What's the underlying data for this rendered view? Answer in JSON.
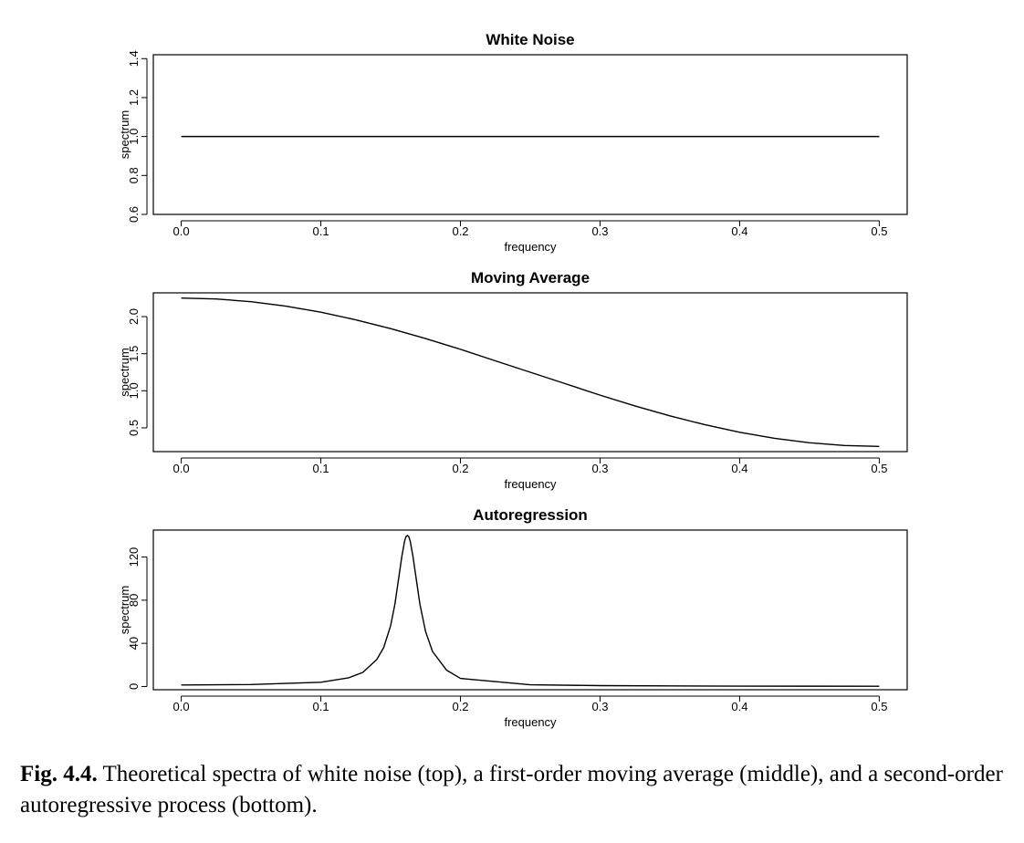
{
  "chart_data": [
    {
      "type": "line",
      "title": "White Noise",
      "xlabel": "frequency",
      "ylabel": "spectrum",
      "xlim": [
        -0.02,
        0.52
      ],
      "ylim": [
        0.6,
        1.42
      ],
      "xticks": [
        0.0,
        0.1,
        0.2,
        0.3,
        0.4,
        0.5
      ],
      "xtick_labels": [
        "0.0",
        "0.1",
        "0.2",
        "0.3",
        "0.4",
        "0.5"
      ],
      "yticks": [
        0.6,
        0.8,
        1.0,
        1.2,
        1.4
      ],
      "ytick_labels": [
        "0.6",
        "0.8",
        "1.0",
        "1.2",
        "1.4"
      ],
      "grid": false,
      "series": [
        {
          "x": [
            0.0,
            0.05,
            0.1,
            0.15,
            0.2,
            0.25,
            0.3,
            0.35,
            0.4,
            0.45,
            0.5
          ],
          "values": [
            1.0,
            1.0,
            1.0,
            1.0,
            1.0,
            1.0,
            1.0,
            1.0,
            1.0,
            1.0,
            1.0
          ]
        }
      ]
    },
    {
      "type": "line",
      "title": "Moving Average",
      "xlabel": "frequency",
      "ylabel": "spectrum",
      "xlim": [
        -0.02,
        0.52
      ],
      "ylim": [
        0.18,
        2.32
      ],
      "xticks": [
        0.0,
        0.1,
        0.2,
        0.3,
        0.4,
        0.5
      ],
      "xtick_labels": [
        "0.0",
        "0.1",
        "0.2",
        "0.3",
        "0.4",
        "0.5"
      ],
      "yticks": [
        0.5,
        1.0,
        1.5,
        2.0
      ],
      "ytick_labels": [
        "0.5",
        "1.0",
        "1.5",
        "2.0"
      ],
      "grid": false,
      "series": [
        {
          "x": [
            0.0,
            0.025,
            0.05,
            0.075,
            0.1,
            0.125,
            0.15,
            0.175,
            0.2,
            0.225,
            0.25,
            0.275,
            0.3,
            0.325,
            0.35,
            0.375,
            0.4,
            0.425,
            0.45,
            0.475,
            0.5
          ],
          "values": [
            2.25,
            2.238,
            2.201,
            2.141,
            2.059,
            1.957,
            1.838,
            1.704,
            1.559,
            1.404,
            1.25,
            1.096,
            0.941,
            0.796,
            0.662,
            0.543,
            0.441,
            0.359,
            0.299,
            0.262,
            0.25
          ]
        }
      ]
    },
    {
      "type": "line",
      "title": "Autoregression",
      "xlabel": "frequency",
      "ylabel": "spectrum",
      "xlim": [
        -0.02,
        0.52
      ],
      "ylim": [
        -3,
        145
      ],
      "xticks": [
        0.0,
        0.1,
        0.2,
        0.3,
        0.4,
        0.5
      ],
      "xtick_labels": [
        "0.0",
        "0.1",
        "0.2",
        "0.3",
        "0.4",
        "0.5"
      ],
      "yticks": [
        0,
        40,
        80,
        120
      ],
      "ytick_labels": [
        "0",
        "40",
        "80",
        "120"
      ],
      "grid": false,
      "series": [
        {
          "x": [
            0.0,
            0.05,
            0.1,
            0.12,
            0.13,
            0.14,
            0.145,
            0.15,
            0.153,
            0.156,
            0.158,
            0.16,
            0.161,
            0.162,
            0.163,
            0.164,
            0.166,
            0.168,
            0.171,
            0.175,
            0.18,
            0.19,
            0.2,
            0.25,
            0.3,
            0.35,
            0.4,
            0.45,
            0.5
          ],
          "values": [
            1.4,
            1.8,
            3.9,
            8.1,
            13.0,
            24.9,
            36.0,
            56.5,
            76.0,
            102.5,
            120.4,
            134.8,
            138.9,
            140.0,
            138.9,
            134.8,
            120.4,
            102.5,
            76.0,
            51.0,
            32.4,
            15.2,
            7.5,
            1.6,
            0.8,
            0.5,
            0.35,
            0.28,
            0.25
          ]
        }
      ]
    }
  ],
  "caption": {
    "label": "Fig. 4.4.",
    "text": "Theoretical spectra of white noise (top), a first-order moving average (middle), and a second-order autoregressive process (bottom)."
  }
}
